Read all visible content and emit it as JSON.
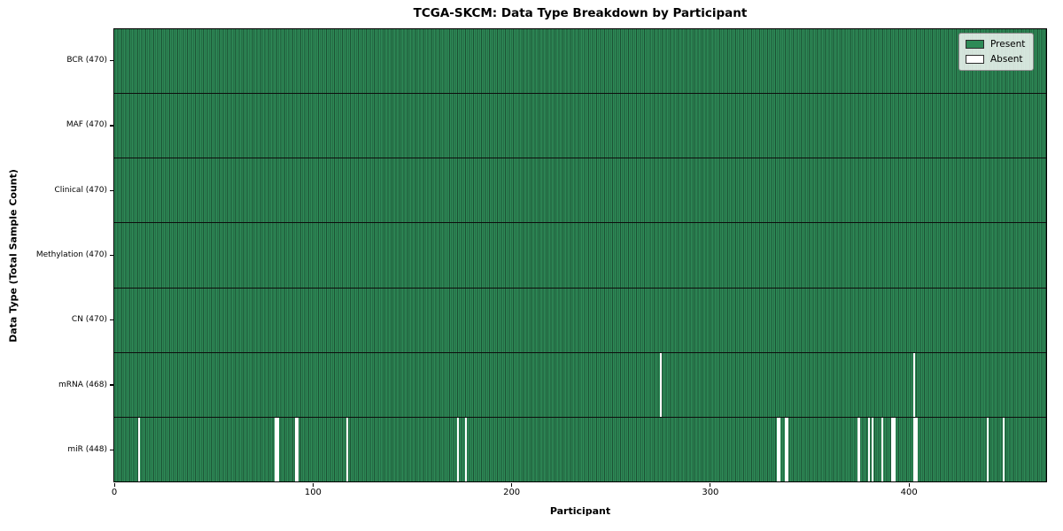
{
  "chart_data": {
    "type": "heatmap",
    "title": "TCGA-SKCM: Data Type Breakdown by Participant",
    "xlabel": "Participant",
    "ylabel": "Data Type (Total Sample Count)",
    "x_range": [
      0,
      470
    ],
    "x_ticks": [
      0,
      100,
      200,
      300,
      400
    ],
    "legend_position": "upper right",
    "legend": [
      {
        "label": "Present",
        "color": "#2e8b57"
      },
      {
        "label": "Absent",
        "color": "#ffffff"
      }
    ],
    "colors": {
      "present": "#2e8b57",
      "absent": "#ffffff",
      "cell_edge": "#1c5134",
      "row_divider": "#0d0d0d"
    },
    "rows": [
      {
        "name": "BCR",
        "label": "BCR (470)",
        "total": 470,
        "absent_participants": []
      },
      {
        "name": "MAF",
        "label": "MAF (470)",
        "total": 470,
        "absent_participants": []
      },
      {
        "name": "Clinical",
        "label": "Clinical (470)",
        "total": 470,
        "absent_participants": []
      },
      {
        "name": "Methylation",
        "label": "Methylation (470)",
        "total": 470,
        "absent_participants": []
      },
      {
        "name": "CN",
        "label": "CN (470)",
        "total": 470,
        "absent_participants": []
      },
      {
        "name": "mRNA",
        "label": "mRNA (468)",
        "total": 468,
        "absent_participants": [
          275,
          403
        ]
      },
      {
        "name": "miR",
        "label": "miR (448)",
        "total": 448,
        "absent_participants": [
          12,
          81,
          82,
          91,
          92,
          117,
          173,
          177,
          334,
          335,
          338,
          339,
          375,
          380,
          382,
          387,
          392,
          393,
          403,
          404,
          440,
          448
        ]
      }
    ]
  }
}
